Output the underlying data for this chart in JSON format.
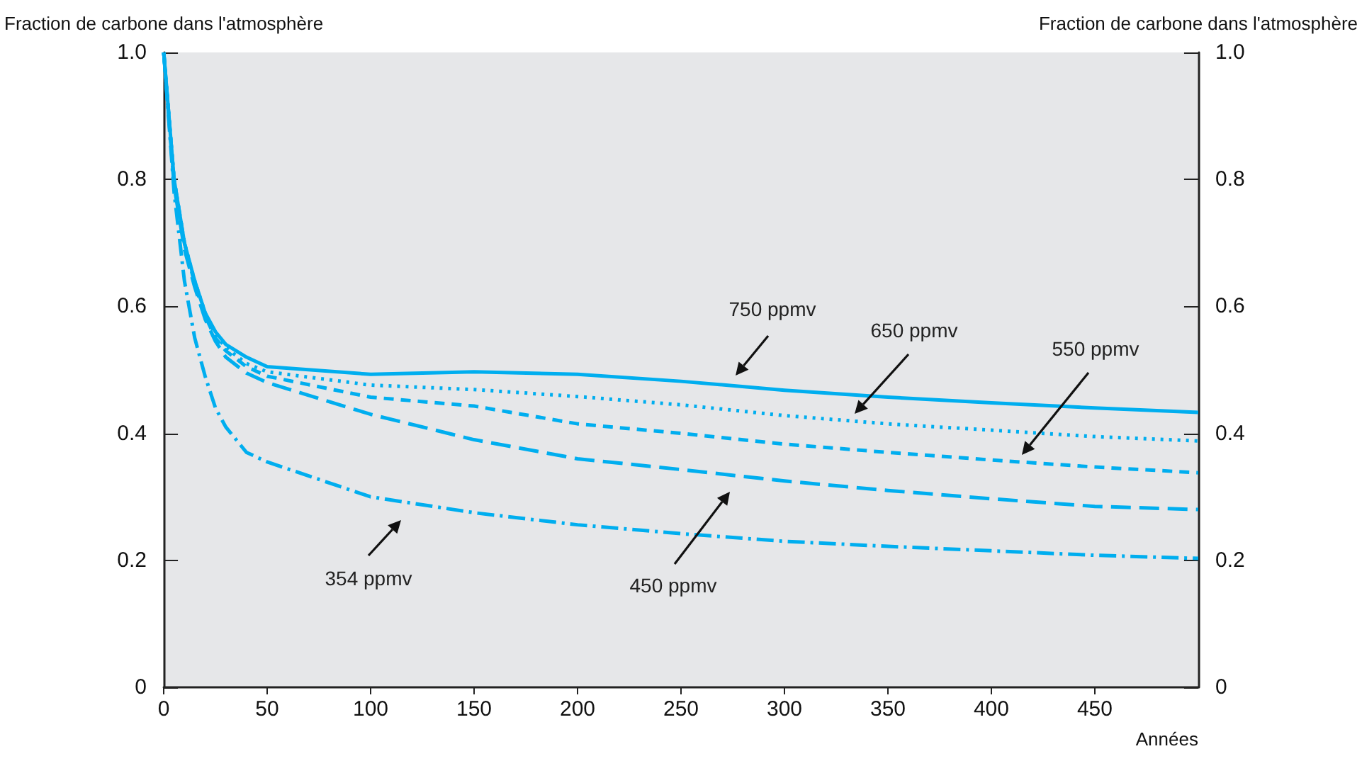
{
  "chart_data": {
    "type": "line",
    "xlabel": "Années",
    "ylabel": "Fraction de carbone dans l'atmosphère",
    "y2label": "Fraction de carbone dans l'atmosphère",
    "xlim": [
      0,
      500
    ],
    "xticks": [
      0,
      50,
      100,
      150,
      200,
      250,
      300,
      350,
      400,
      450
    ],
    "ylim": [
      0,
      1
    ],
    "yticks": [
      0,
      {
        "value": 0.2,
        "label": "0.2"
      },
      {
        "value": 0.4,
        "label": "0.4"
      },
      {
        "value": 0.6,
        "label": "0.6"
      },
      {
        "value": 0.8,
        "label": "0.8"
      },
      {
        "value": 1,
        "label": "1.0"
      }
    ],
    "y2lim": [
      0,
      1
    ],
    "y2ticks": [
      0,
      {
        "value": 0.2,
        "label": "0.2"
      },
      {
        "value": 0.4,
        "label": "0.4"
      },
      {
        "value": 0.6,
        "label": "0.6"
      },
      {
        "value": 0.8,
        "label": "0.8"
      },
      {
        "value": 1,
        "label": "1.0"
      }
    ],
    "grid": false,
    "marker": "none",
    "x": [
      0,
      5,
      10,
      15,
      20,
      25,
      30,
      40,
      50,
      100,
      150,
      200,
      250,
      300,
      350,
      400,
      450,
      500
    ],
    "series": [
      {
        "color": "#00aeef",
        "line_style": "solid",
        "values": [
          1.0,
          0.8,
          0.7,
          0.64,
          0.59,
          0.56,
          0.54,
          0.52,
          0.505,
          0.493,
          0.497,
          0.493,
          0.482,
          0.468,
          0.457,
          0.448,
          0.44,
          0.433
        ]
      },
      {
        "color": "#00aeef",
        "line_style": "dotted",
        "values": [
          1.0,
          0.8,
          0.7,
          0.64,
          0.59,
          0.555,
          0.535,
          0.51,
          0.497,
          0.476,
          0.469,
          0.458,
          0.445,
          0.428,
          0.415,
          0.405,
          0.395,
          0.388
        ]
      },
      {
        "color": "#00aeef",
        "line_style": "dashed",
        "values": [
          1.0,
          0.8,
          0.7,
          0.635,
          0.585,
          0.55,
          0.53,
          0.505,
          0.49,
          0.457,
          0.443,
          0.415,
          0.4,
          0.383,
          0.37,
          0.358,
          0.347,
          0.338
        ]
      },
      {
        "color": "#00aeef",
        "line_style": "longdash",
        "values": [
          1.0,
          0.79,
          0.69,
          0.63,
          0.58,
          0.545,
          0.52,
          0.495,
          0.48,
          0.43,
          0.39,
          0.36,
          0.343,
          0.325,
          0.31,
          0.297,
          0.285,
          0.28
        ]
      },
      {
        "color": "#00aeef",
        "line_style": "dashdot",
        "values": [
          1.0,
          0.78,
          0.64,
          0.55,
          0.49,
          0.44,
          0.41,
          0.37,
          0.355,
          0.3,
          0.275,
          0.256,
          0.242,
          0.23,
          0.222,
          0.215,
          0.208,
          0.203
        ]
      }
    ],
    "annotations": [
      "750 ppmv",
      "650 ppmv",
      "550 ppmv",
      "450 ppmv",
      "354 ppmv"
    ]
  }
}
